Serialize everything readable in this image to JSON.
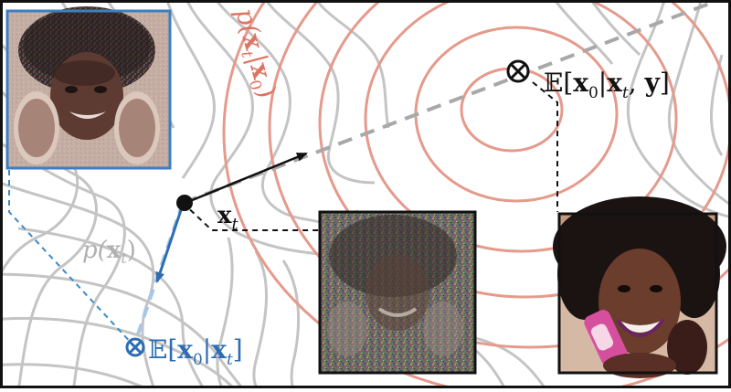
{
  "labels": {
    "x_t": "x",
    "x_t_sub": "t",
    "p_xt_p": "p(",
    "p_xt_x": "x",
    "p_xt_sub": "t",
    "p_xt_close": ")",
    "p_cond_p": "p(",
    "p_cond_x": "x",
    "p_cond_sub": "t",
    "p_cond_bar": "|",
    "p_cond_x0": "x",
    "p_cond_x0_sub": "0",
    "p_cond_close": ")",
    "e_cond_y_open": "𝔼[",
    "e_cond_y_x0": "x",
    "e_cond_y_x0_sub": "0",
    "e_cond_y_bar": "|",
    "e_cond_y_xt": "x",
    "e_cond_y_xt_sub": "t",
    "e_cond_y_comma": ", ",
    "e_cond_y_y": "y",
    "e_cond_y_close": "]",
    "e_cond_open": "𝔼[",
    "e_cond_x0": "x",
    "e_cond_x0_sub": "0",
    "e_cond_bar": "|",
    "e_cond_xt": "x",
    "e_cond_xt_sub": "t",
    "e_cond_close": "]",
    "otimes": "⊗"
  },
  "colors": {
    "contour_gray": "#c4c4c4",
    "contour_red": "#e59a8c",
    "blue": "#2e6db4",
    "blue_dashed": "#3a8ac8",
    "gray_dashed": "#a8a8a8",
    "black": "#111111",
    "frame_blue": "#3b7fc2"
  },
  "icons": {
    "point": "filled-circle",
    "cross_marker": "circled-times"
  }
}
